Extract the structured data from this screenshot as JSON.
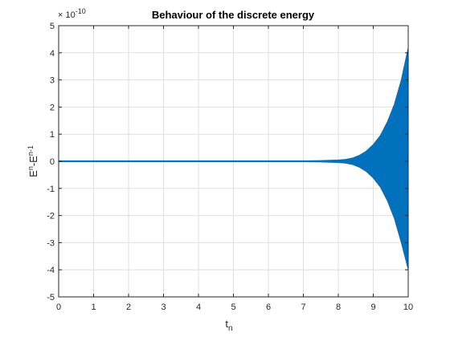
{
  "chart_data": {
    "type": "area",
    "title": "Behaviour of the discrete energy",
    "xlabel": "t",
    "xlabel_sub": "n",
    "ylabel": "E",
    "ylabel_sup1": "n",
    "ylabel_mid": "-E",
    "ylabel_sup2": "n-1",
    "exponent_prefix": "× 10",
    "exponent_power": "-10",
    "xlim": [
      0,
      10
    ],
    "ylim": [
      -5,
      5
    ],
    "xticks": [
      "0",
      "1",
      "2",
      "3",
      "4",
      "5",
      "6",
      "7",
      "8",
      "9",
      "10"
    ],
    "yticks": [
      "5",
      "4",
      "3",
      "2",
      "1",
      "0",
      "-1",
      "-2",
      "-3",
      "-4",
      "-5"
    ],
    "grid": true,
    "series": [
      {
        "color": "#0072BD",
        "x": [
          0,
          7.0,
          7.5,
          8.0,
          8.2,
          8.4,
          8.6,
          8.8,
          9.0,
          9.2,
          9.4,
          9.6,
          9.8,
          10.0
        ],
        "upper": [
          0.02,
          0.02,
          0.03,
          0.05,
          0.07,
          0.12,
          0.22,
          0.38,
          0.62,
          0.95,
          1.45,
          2.1,
          3.0,
          4.2
        ],
        "lower": [
          -0.02,
          -0.02,
          -0.03,
          -0.05,
          -0.07,
          -0.12,
          -0.22,
          -0.38,
          -0.62,
          -0.95,
          -1.45,
          -2.1,
          -3.0,
          -4.0
        ]
      }
    ]
  }
}
